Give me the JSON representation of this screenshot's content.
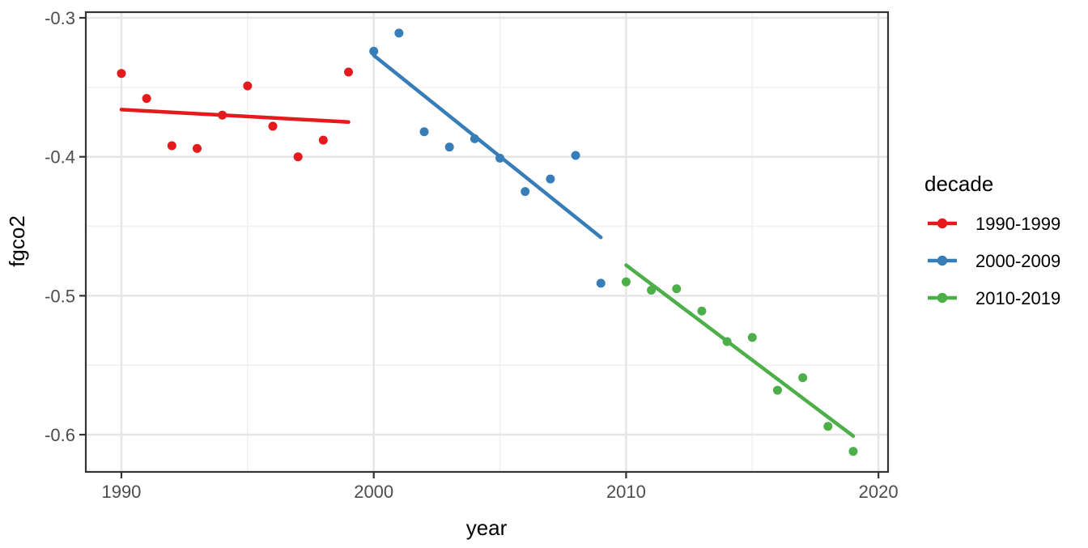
{
  "chart_data": {
    "type": "scatter",
    "title": "",
    "xlabel": "year",
    "ylabel": "fgco2",
    "xlim": [
      1988.59,
      2020.38
    ],
    "ylim": [
      -0.6268,
      -0.2959
    ],
    "x_tick_values": [
      1990,
      2000,
      2010,
      2020
    ],
    "x_tick_labels": [
      "1990",
      "2000",
      "2010",
      "2020"
    ],
    "x_minor_ticks": [
      1995,
      2005,
      2015
    ],
    "y_tick_values": [
      -0.3,
      -0.4,
      -0.5,
      -0.6
    ],
    "y_tick_labels": [
      "-0.3",
      "-0.4",
      "-0.5",
      "-0.6"
    ],
    "y_minor_ticks": [
      -0.35,
      -0.45,
      -0.55
    ],
    "grid": "major+minor",
    "legend": {
      "title": "decade",
      "position": "right"
    },
    "series": [
      {
        "name": "1990-1999",
        "color": "#E41A1C",
        "x": [
          1990,
          1991,
          1992,
          1993,
          1994,
          1995,
          1996,
          1997,
          1998,
          1999
        ],
        "y": [
          -0.34,
          -0.358,
          -0.392,
          -0.394,
          -0.37,
          -0.349,
          -0.378,
          -0.4,
          -0.388,
          -0.339
        ],
        "trend": {
          "x": [
            1990,
            1999
          ],
          "y": [
            -0.366,
            -0.375
          ]
        }
      },
      {
        "name": "2000-2009",
        "color": "#377EB8",
        "x": [
          2000,
          2001,
          2002,
          2003,
          2004,
          2005,
          2006,
          2007,
          2008,
          2009
        ],
        "y": [
          -0.324,
          -0.311,
          -0.382,
          -0.393,
          -0.387,
          -0.401,
          -0.425,
          -0.416,
          -0.399,
          -0.491
        ],
        "trend": {
          "x": [
            2000,
            2009
          ],
          "y": [
            -0.327,
            -0.458
          ]
        }
      },
      {
        "name": "2010-2019",
        "color": "#4DAF4A",
        "x": [
          2010,
          2011,
          2012,
          2013,
          2014,
          2015,
          2016,
          2017,
          2018,
          2019
        ],
        "y": [
          -0.49,
          -0.496,
          -0.495,
          -0.511,
          -0.533,
          -0.53,
          -0.568,
          -0.559,
          -0.594,
          -0.612
        ],
        "trend": {
          "x": [
            2010,
            2019
          ],
          "y": [
            -0.478,
            -0.601
          ]
        }
      }
    ],
    "theme": {
      "panel_background": "#FFFFFF",
      "panel_border": "#333333",
      "grid_major_color": "#E6E6E6",
      "grid_minor_color": "#F0F0F0",
      "tick_label_color": "#4D4D4D",
      "axis_title_color": "#000000"
    }
  }
}
